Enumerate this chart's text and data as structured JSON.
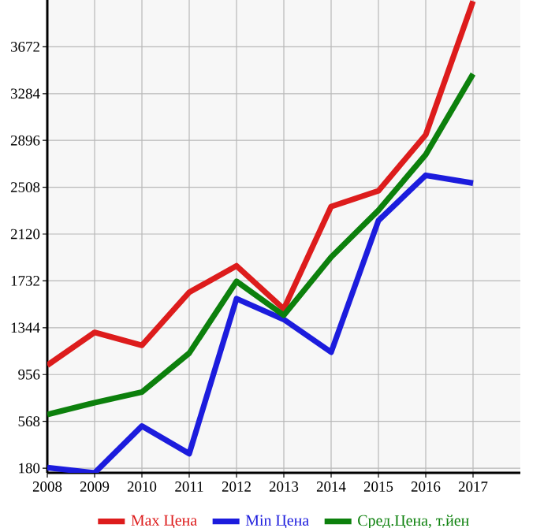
{
  "chart_data": {
    "type": "line",
    "x": [
      2008,
      2009,
      2010,
      2011,
      2012,
      2013,
      2014,
      2015,
      2016,
      2017
    ],
    "series": [
      {
        "name": "Max Цена",
        "color": "#dd1c1c",
        "values": [
          1033,
          1305,
          1198,
          1637,
          1857,
          1499,
          2348,
          2478,
          2943,
          4050
        ]
      },
      {
        "name": "Min Цена",
        "color": "#1c1cdd",
        "values": [
          184,
          141,
          529,
          300,
          1585,
          1412,
          1141,
          2232,
          2607,
          2542
        ]
      },
      {
        "name": "Сред.Цена, т.йен",
        "color": "#0c800c",
        "values": [
          624,
          723,
          810,
          1133,
          1728,
          1447,
          1929,
          2317,
          2779,
          3447
        ]
      }
    ],
    "xlim": [
      2008,
      2018
    ],
    "ylim": [
      141,
      4060
    ],
    "xticks": [
      2008,
      2009,
      2010,
      2011,
      2012,
      2013,
      2014,
      2015,
      2016,
      2017
    ],
    "yticks": [
      180,
      568,
      956,
      1344,
      1732,
      2120,
      2508,
      2896,
      3284,
      3672
    ],
    "grid": true,
    "legend": "bottom",
    "marker": "none",
    "line_style": "solid"
  }
}
